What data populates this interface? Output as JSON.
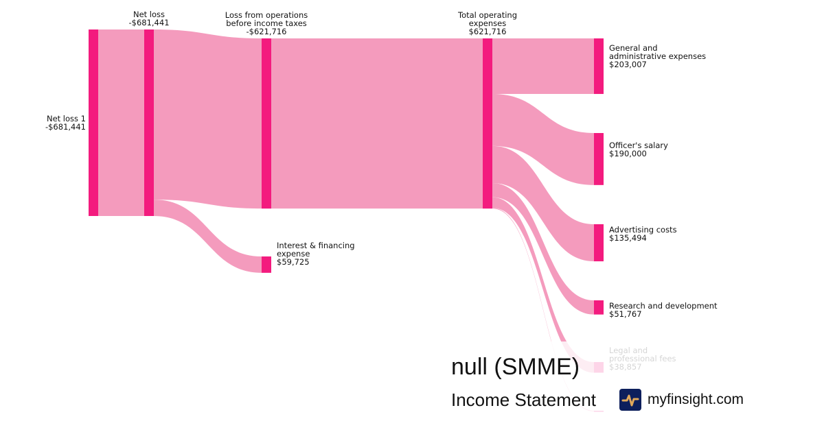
{
  "colors": {
    "node": "#f31b7e",
    "link": "#f49bbd",
    "logo_bg": "#0d1f5c",
    "logo_mark": "#e0a85a"
  },
  "nodes": [
    {
      "id": "n1",
      "name": "Net loss 1",
      "value_label": "-$681,441",
      "value": 681441
    },
    {
      "id": "n2",
      "name": "Net loss",
      "value_label": "-$681,441",
      "value": 681441
    },
    {
      "id": "ops",
      "name": "Loss from operations before income taxes",
      "value_label": "-$621,716",
      "value": 621716
    },
    {
      "id": "int",
      "name": "Interest & financing expense",
      "value_label": "$59,725",
      "value": 59725
    },
    {
      "id": "tot",
      "name": "Total operating expenses",
      "value_label": "$621,716",
      "value": 621716
    },
    {
      "id": "ga",
      "name": "General and administrative expenses",
      "value_label": "$203,007",
      "value": 203007
    },
    {
      "id": "off",
      "name": "Officer's salary",
      "value_label": "$190,000",
      "value": 190000
    },
    {
      "id": "adv",
      "name": "Advertising costs",
      "value_label": "$135,494",
      "value": 135494
    },
    {
      "id": "rd",
      "name": "Research and development",
      "value_label": "$51,767",
      "value": 51767
    },
    {
      "id": "leg",
      "name": "Legal and professional fees",
      "value_label": "$38,857",
      "value": 38857
    },
    {
      "id": "last",
      "value": 2591
    }
  ],
  "links": [
    {
      "source": "n1",
      "target": "n2",
      "value": 681441
    },
    {
      "source": "n2",
      "target": "ops",
      "value": 621716
    },
    {
      "source": "n2",
      "target": "int",
      "value": 59725
    },
    {
      "source": "ops",
      "target": "tot",
      "value": 621716
    },
    {
      "source": "tot",
      "target": "ga",
      "value": 203007
    },
    {
      "source": "tot",
      "target": "off",
      "value": 190000
    },
    {
      "source": "tot",
      "target": "adv",
      "value": 135494
    },
    {
      "source": "tot",
      "target": "rd",
      "value": 51767
    },
    {
      "source": "tot",
      "target": "leg",
      "value": 38857
    },
    {
      "source": "tot",
      "target": "last",
      "value": 2591
    }
  ],
  "labels": {
    "n1": [
      "Net loss 1",
      "-$681,441"
    ],
    "n2": [
      "Net loss",
      "-$681,441"
    ],
    "ops": [
      "Loss from operations",
      "before income taxes",
      "-$621,716"
    ],
    "int": [
      "Interest & financing",
      "expense",
      "$59,725"
    ],
    "tot": [
      "Total operating",
      "expenses",
      "$621,716"
    ],
    "ga": [
      "General and",
      "administrative expenses",
      "$203,007"
    ],
    "off": [
      "Officer's salary",
      "$190,000"
    ],
    "adv": [
      "Advertising costs",
      "$135,494"
    ],
    "rd": [
      "Research and development",
      "$51,767"
    ],
    "leg": [
      "Legal and",
      "professional fees",
      "$38,857"
    ]
  },
  "footer": {
    "company": "null (SMME)",
    "statement": "Income Statement",
    "site": "myfinsight.com",
    "logo_icon": "pulse-line-icon"
  }
}
